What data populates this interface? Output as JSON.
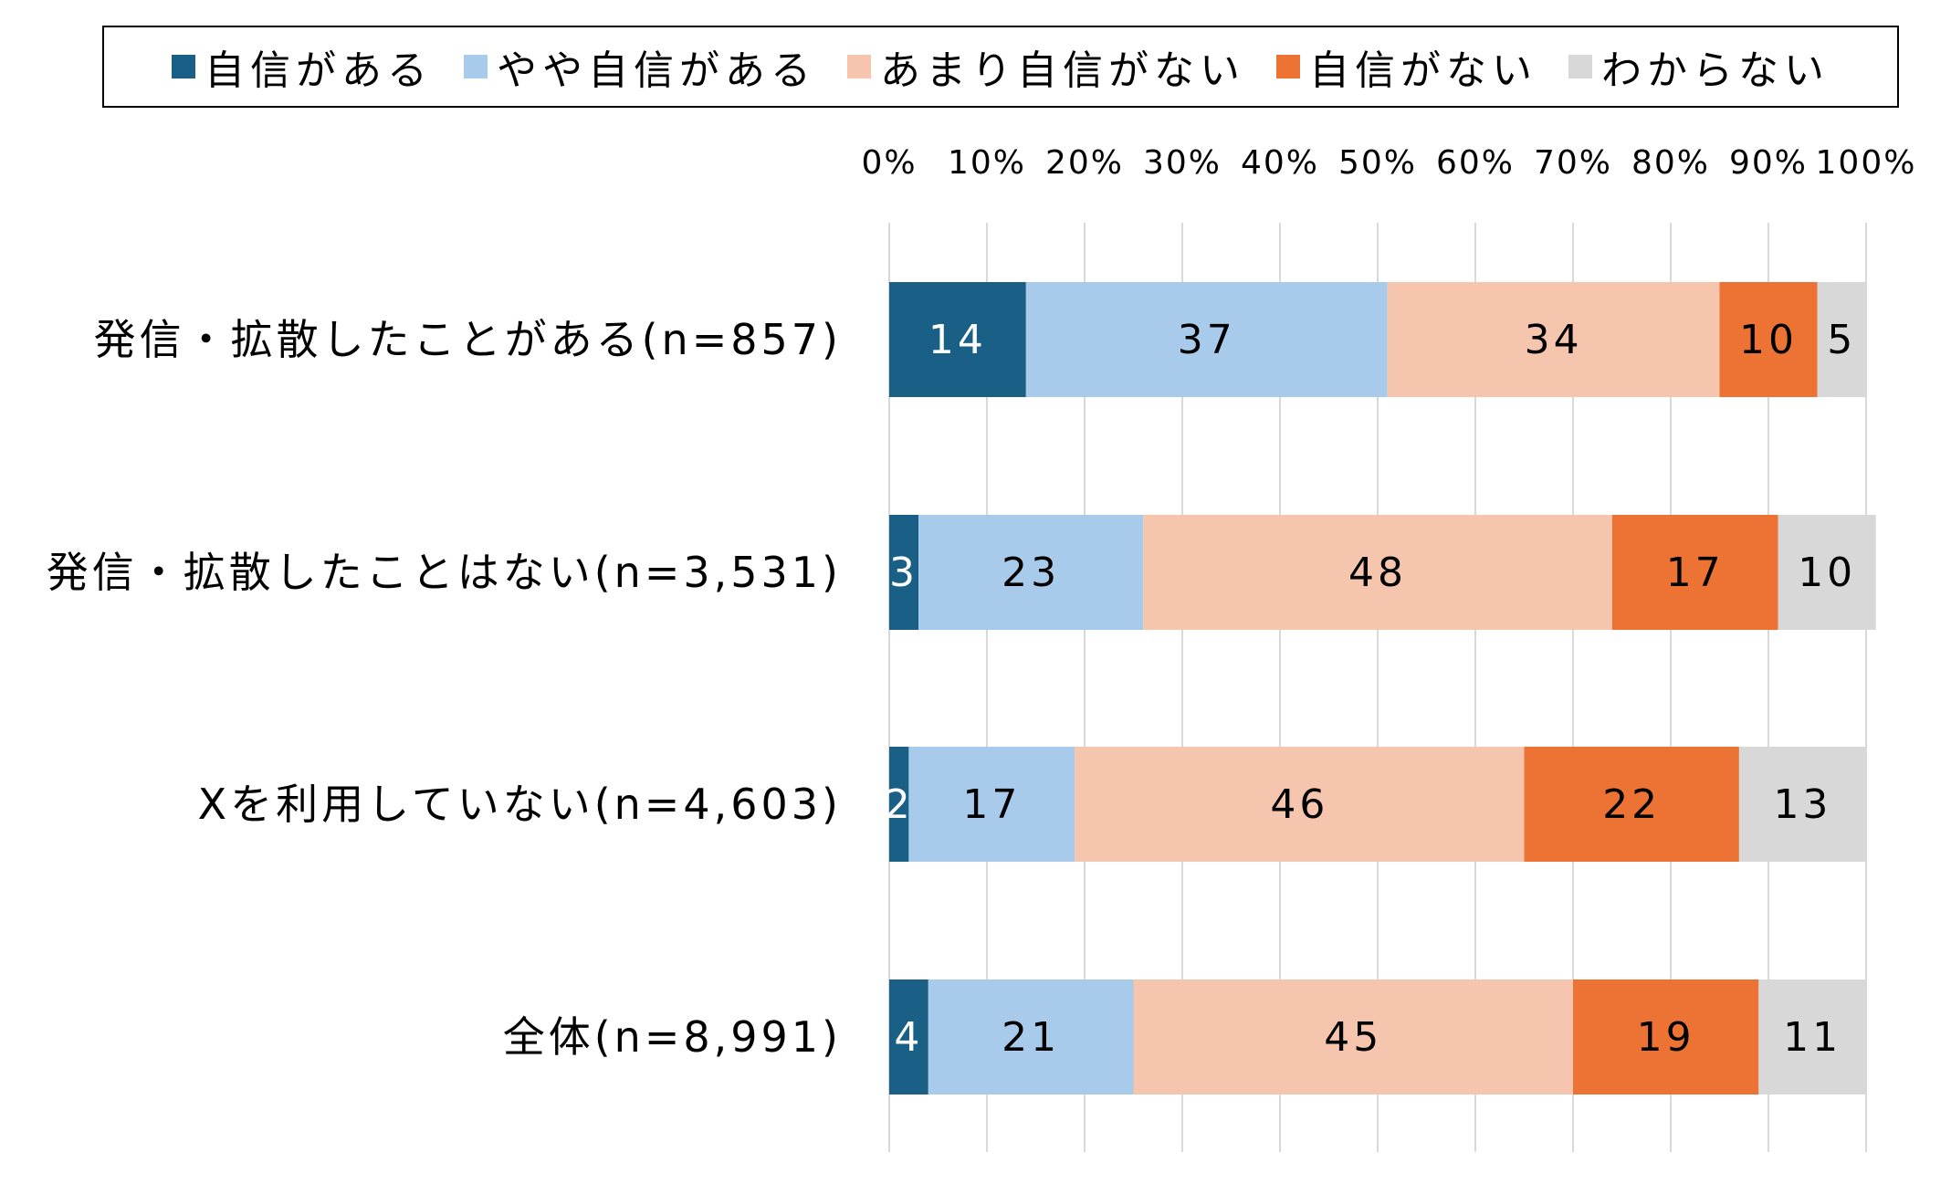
{
  "chart_data": {
    "type": "bar",
    "orientation": "horizontal",
    "stacked": true,
    "categories": [
      "発信・拡散したことがある(n=857)",
      "発信・拡散したことはない(n=3,531)",
      "Xを利用していない(n=4,603)",
      "全体(n=8,991)"
    ],
    "series": [
      {
        "name": "自信がある",
        "color": "#1a5f86",
        "label_color": "#ffffff",
        "values": [
          14,
          3,
          2,
          4
        ]
      },
      {
        "name": "やや自信がある",
        "color": "#a8cbec",
        "label_color": "#000000",
        "values": [
          37,
          23,
          17,
          21
        ]
      },
      {
        "name": "あまり自信がない",
        "color": "#f6c5ad",
        "label_color": "#000000",
        "values": [
          34,
          48,
          46,
          45
        ]
      },
      {
        "name": "自信がない",
        "color": "#ec7333",
        "label_color": "#000000",
        "values": [
          10,
          17,
          22,
          19
        ]
      },
      {
        "name": "わからない",
        "color": "#d8d8d8",
        "label_color": "#000000",
        "values": [
          5,
          10,
          13,
          11
        ]
      }
    ],
    "xlim": [
      0,
      100
    ],
    "x_ticks": [
      "0%",
      "10%",
      "20%",
      "30%",
      "40%",
      "50%",
      "60%",
      "70%",
      "80%",
      "90%",
      "100%"
    ],
    "grid": true,
    "legend_position": "top"
  }
}
